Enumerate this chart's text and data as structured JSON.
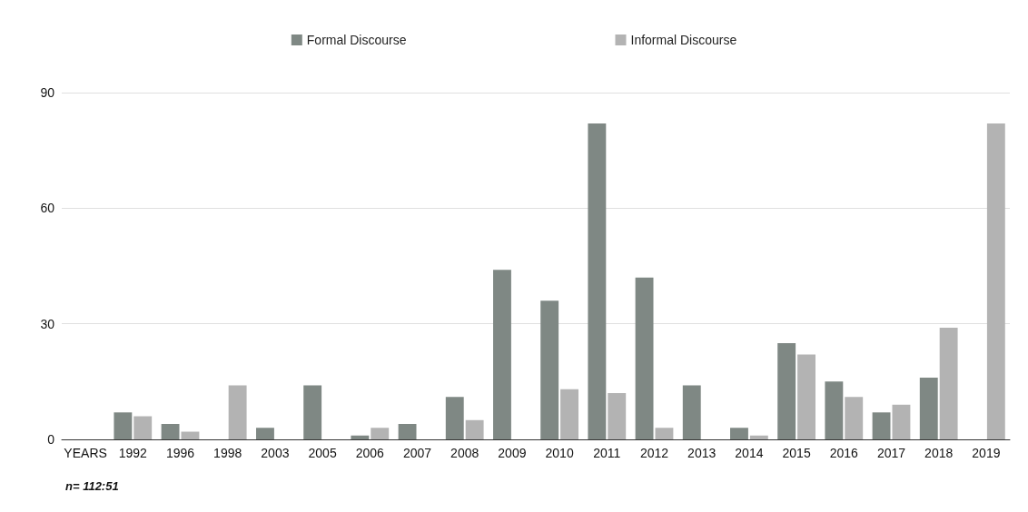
{
  "chart_data": {
    "type": "bar",
    "categories": [
      "YEARS",
      "1992",
      "1996",
      "1998",
      "2003",
      "2005",
      "2006",
      "2007",
      "2008",
      "2009",
      "2010",
      "2011",
      "2012",
      "2013",
      "2014",
      "2015",
      "2016",
      "2017",
      "2018",
      "2019"
    ],
    "series": [
      {
        "name": "Formal Discourse",
        "color": "#7f8884",
        "values": [
          null,
          7,
          4,
          0,
          3,
          14,
          1,
          4,
          11,
          44,
          36,
          82,
          42,
          14,
          3,
          25,
          15,
          7,
          16,
          0
        ]
      },
      {
        "name": "Informal Discourse",
        "color": "#b3b3b3",
        "values": [
          null,
          6,
          2,
          14,
          0,
          0,
          3,
          0,
          5,
          0,
          13,
          12,
          3,
          0,
          1,
          22,
          11,
          9,
          29,
          82
        ]
      }
    ],
    "ylim": [
      0,
      90
    ],
    "yticks": [
      0,
      30,
      60,
      90
    ],
    "grid": "y",
    "legend": "top",
    "annotations": [
      "n= 112:51"
    ]
  }
}
